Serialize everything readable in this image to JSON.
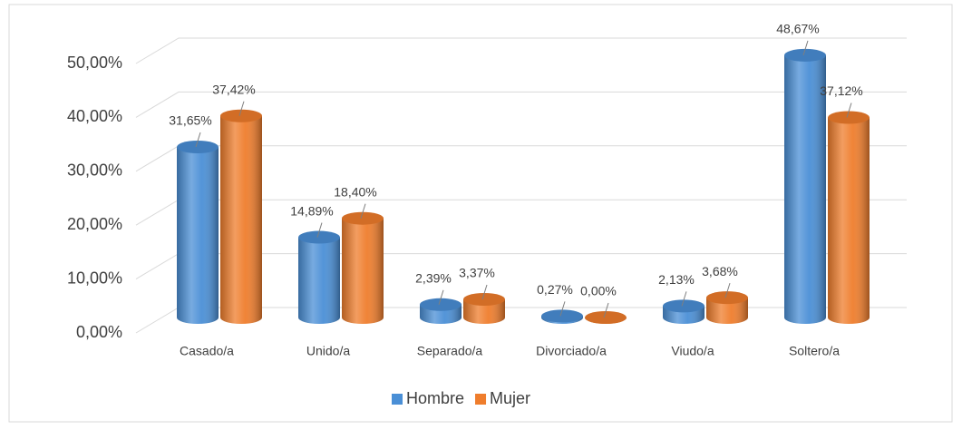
{
  "chart_data": {
    "type": "bar3d",
    "categories": [
      "Casado/a",
      "Unido/a",
      "Separado/a",
      "Divorciado/a",
      "Viudo/a",
      "Soltero/a"
    ],
    "series": [
      {
        "name": "Hombre",
        "color": "#4a8fd6",
        "values": [
          31.65,
          14.89,
          2.39,
          0.27,
          2.13,
          48.67
        ],
        "value_labels": [
          "31,65%",
          "14,89%",
          "2,39%",
          "0,27%",
          "2,13%",
          "48,67%"
        ]
      },
      {
        "name": "Mujer",
        "color": "#ef7d2c",
        "values": [
          37.42,
          18.4,
          3.37,
          0.0,
          3.68,
          37.12
        ],
        "value_labels": [
          "37,42%",
          "18,40%",
          "3,37%",
          "0,00%",
          "3,68%",
          "37,12%"
        ]
      }
    ],
    "ylim": [
      0,
      50
    ],
    "yticks": [
      {
        "value": 0,
        "label": "0,00%"
      },
      {
        "value": 10,
        "label": "10,00%"
      },
      {
        "value": 20,
        "label": "20,00%"
      },
      {
        "value": 30,
        "label": "30,00%"
      },
      {
        "value": 40,
        "label": "40,00%"
      },
      {
        "value": 50,
        "label": "50,00%"
      }
    ],
    "grid": true,
    "legend": "bottom"
  }
}
